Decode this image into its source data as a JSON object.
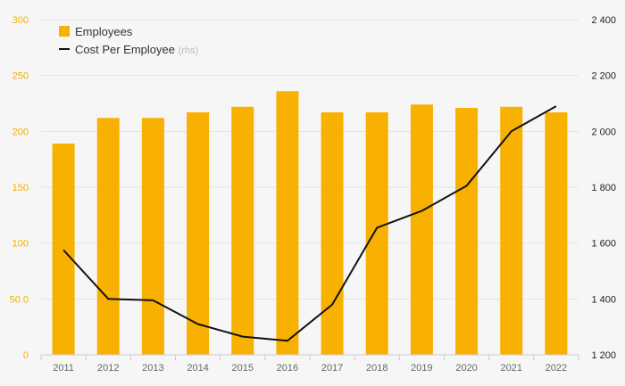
{
  "chart_data": {
    "type": "bar+line",
    "categories": [
      "2011",
      "2012",
      "2013",
      "2014",
      "2015",
      "2016",
      "2017",
      "2018",
      "2019",
      "2020",
      "2021",
      "2022"
    ],
    "series": [
      {
        "name": "Employees",
        "type": "bar",
        "axis": "left",
        "values": [
          189,
          212,
          212,
          217,
          222,
          236,
          217,
          217,
          224,
          221,
          222,
          217
        ]
      },
      {
        "name": "Cost Per Employee",
        "name_suffix": "(rhs)",
        "type": "line",
        "axis": "right",
        "values": [
          1575,
          1400,
          1395,
          1310,
          1265,
          1250,
          1380,
          1655,
          1715,
          1805,
          2000,
          2090
        ]
      }
    ],
    "left_axis": {
      "range": [
        0,
        300
      ],
      "ticks": [
        0,
        50,
        100,
        150,
        200,
        250,
        300
      ],
      "tick_labels": [
        "0",
        "50.0",
        "100",
        "150",
        "200",
        "250",
        "300"
      ]
    },
    "right_axis": {
      "range": [
        1200,
        2400
      ],
      "ticks": [
        1200,
        1400,
        1600,
        1800,
        2000,
        2200,
        2400
      ],
      "tick_labels": [
        "1 200",
        "1 400",
        "1 600",
        "1 800",
        "2 000",
        "2 200",
        "2 400"
      ]
    },
    "grid": true,
    "legend_position": "top-left",
    "colors": {
      "bar": "#f8b100",
      "line": "#111111",
      "left_axis": "#f2b100",
      "grid": "#e4e4e4"
    }
  }
}
